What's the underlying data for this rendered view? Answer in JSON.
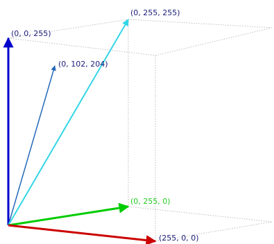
{
  "colors": {
    "red": "#cc0000",
    "green": "#00cc00",
    "blue": "#0000cc",
    "cyan": "#33d6e6",
    "steel_blue": "#2468b8",
    "dotted_edge": "#bdbdbd",
    "label_blue": "#1a1a7a",
    "label_green": "#22cc22"
  },
  "labels": {
    "blue_axis": "(0, 0, 255)",
    "mid_vector": "(0, 102, 204)",
    "cyan_vector": "(0, 255, 255)",
    "green_axis": "(0, 255, 0)",
    "red_axis": "(255, 0, 0)"
  }
}
